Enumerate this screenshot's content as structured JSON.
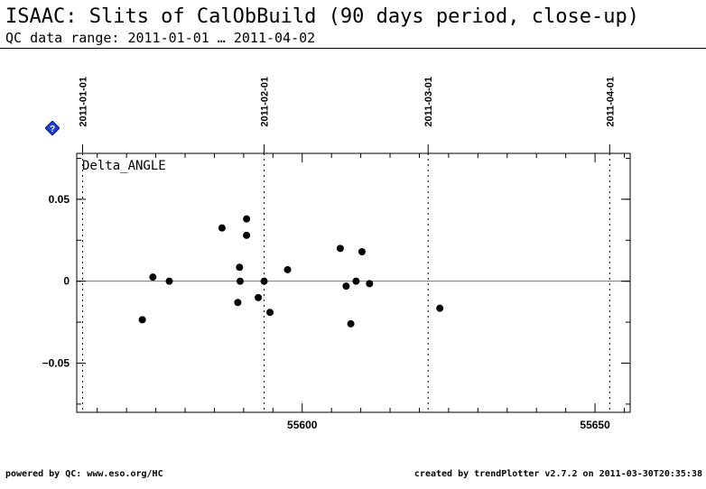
{
  "header": {
    "title": "ISAAC: Slits of CalObBuild (90 days period, close-up)",
    "subtitle": "QC data range: 2011-01-01 … 2011-04-02"
  },
  "help_icon": {
    "icon": "help-diamond-icon",
    "color": "#1f3fd0",
    "glyph": "?"
  },
  "footer": {
    "left": "powered by QC: www.eso.org/HC",
    "right": "created by trendPlotter v2.7.2 on 2011-03-30T20:35:38"
  },
  "chart_data": {
    "type": "scatter",
    "panel_label": "Delta_ANGLE",
    "xlim": [
      55561.5,
      55656
    ],
    "ylim": [
      -0.08,
      0.078
    ],
    "x_ticks": [
      {
        "value": 55600,
        "label": "55600"
      },
      {
        "value": 55650,
        "label": "55650"
      }
    ],
    "y_ticks": [
      {
        "value": 0.05,
        "label": "0.05"
      },
      {
        "value": 0,
        "label": "0"
      },
      {
        "value": -0.05,
        "label": "−0.05"
      }
    ],
    "date_markers": [
      {
        "value": 55562.5,
        "label": "2011-01-01"
      },
      {
        "value": 55593.5,
        "label": "2011-02-01"
      },
      {
        "value": 55621.5,
        "label": "2011-03-01"
      },
      {
        "value": 55652.5,
        "label": "2011-04-01"
      }
    ],
    "reference_line": 0,
    "colors": {
      "points": "#000000",
      "axes": "#000000",
      "zero_line": "#777777"
    },
    "points": [
      {
        "x": 55572.7,
        "y": -0.0235
      },
      {
        "x": 55574.5,
        "y": 0.0025
      },
      {
        "x": 55577.3,
        "y": 0.0
      },
      {
        "x": 55586.3,
        "y": 0.0325
      },
      {
        "x": 55589.0,
        "y": -0.013
      },
      {
        "x": 55589.3,
        "y": 0.0085
      },
      {
        "x": 55589.4,
        "y": 0.0
      },
      {
        "x": 55590.5,
        "y": 0.038
      },
      {
        "x": 55590.5,
        "y": 0.028
      },
      {
        "x": 55592.5,
        "y": -0.01
      },
      {
        "x": 55593.5,
        "y": 0.0
      },
      {
        "x": 55594.5,
        "y": -0.019
      },
      {
        "x": 55597.5,
        "y": 0.007
      },
      {
        "x": 55606.5,
        "y": 0.02
      },
      {
        "x": 55607.5,
        "y": -0.003
      },
      {
        "x": 55608.3,
        "y": -0.026
      },
      {
        "x": 55609.2,
        "y": 0.0
      },
      {
        "x": 55610.2,
        "y": 0.018
      },
      {
        "x": 55611.5,
        "y": -0.0015
      },
      {
        "x": 55623.5,
        "y": -0.0165
      }
    ]
  }
}
